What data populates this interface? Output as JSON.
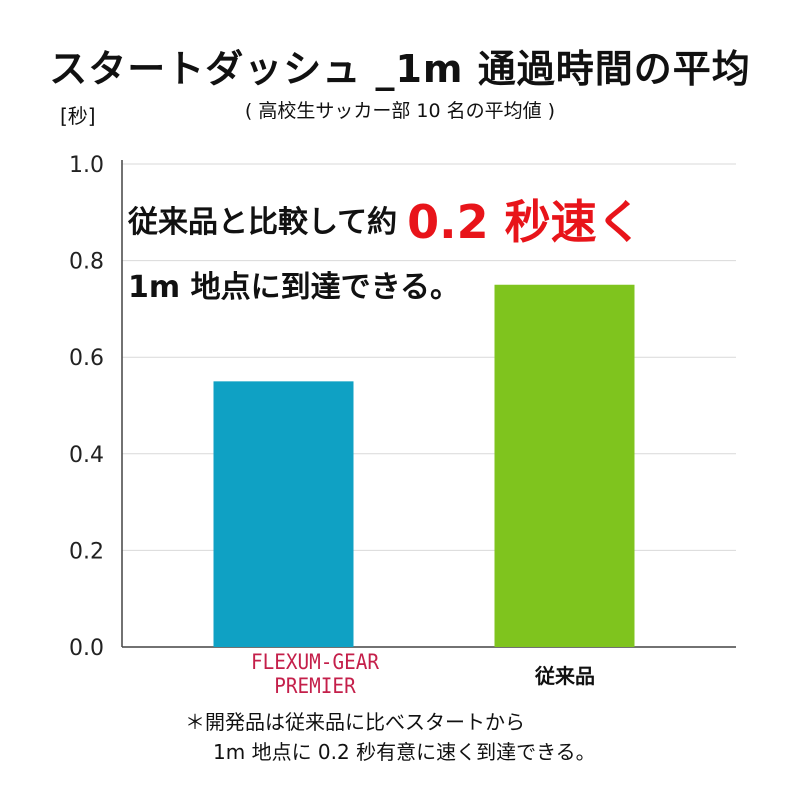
{
  "title": "スタートダッシュ _1m 通過時間の平均",
  "subtitle": "( 高校生サッカー部 10 名の平均値 )",
  "callout": {
    "line1_text": "従来品と比較して約",
    "line1_highlight": "0.2 秒速く",
    "line2_text": "1m 地点に到達できる。",
    "highlight_color": "#e8141a"
  },
  "footnote": {
    "line1": "＊開発品は従来品に比べスタートから",
    "line2": "1m 地点に 0.2 秒有意に速く到達できる。"
  },
  "category_labels": {
    "flexum_line1": "FLEXUM-GEAR",
    "flexum_line2": "PREMIER",
    "conventional": "従来品"
  },
  "chart_data": {
    "type": "bar",
    "title": "スタートダッシュ _1m 通過時間の平均",
    "ylabel": "[秒]",
    "ylim": [
      0,
      1.0
    ],
    "yticks": [
      "0.0",
      "0.2",
      "0.4",
      "0.6",
      "0.8",
      "1.0"
    ],
    "grid": true,
    "categories": [
      "FLEXUM-GEAR PREMIER",
      "従来品"
    ],
    "values": [
      0.55,
      0.75
    ],
    "colors": [
      "#0fa1c4",
      "#7fc41e"
    ]
  }
}
